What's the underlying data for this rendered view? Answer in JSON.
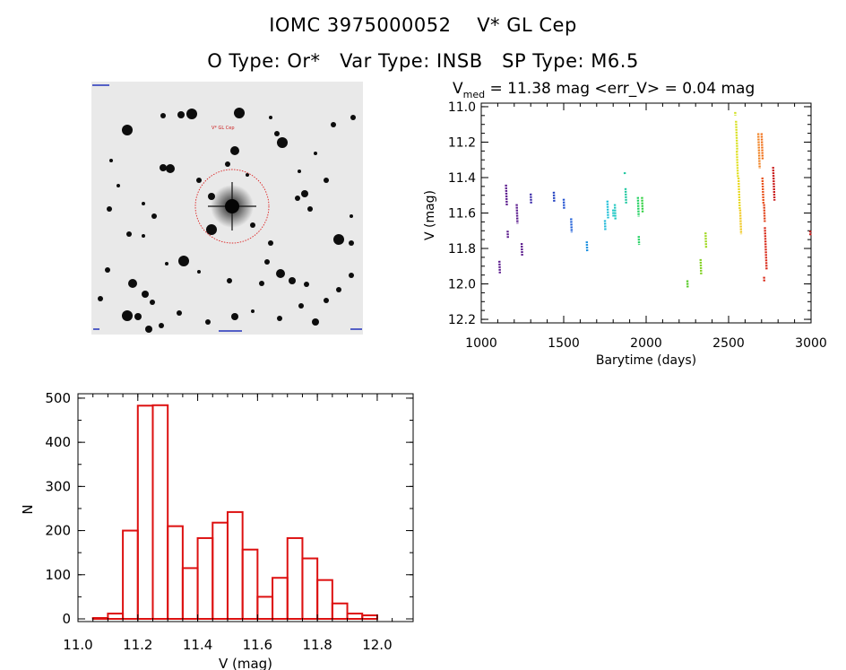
{
  "header": {
    "title_line1": "IOMC 3975000052    V* GL Cep",
    "title_line2": "O Type: Or*   Var Type: INSB   SP Type: M6.5"
  },
  "finder_chart": {
    "target_label": "V* GL Cep",
    "circle_color": "#dd2222"
  },
  "chart_data": [
    {
      "type": "scatter",
      "title": "V_med = 11.38 mag <err_V> = 0.04 mag",
      "title_parts": {
        "v": "V",
        "sub": "med",
        "rest": " = 11.38 mag <err_V> = 0.04 mag"
      },
      "xlabel": "Barytime (days)",
      "ylabel": "V (mag)",
      "xlim": [
        1000,
        3000
      ],
      "ylim": [
        12.22,
        10.98
      ],
      "x_ticks": [
        1000,
        1500,
        2000,
        2500,
        3000
      ],
      "y_ticks": [
        11.0,
        11.2,
        11.4,
        11.6,
        11.8,
        12.0,
        12.2
      ],
      "y_tick_labels": [
        "11.0",
        "11.2",
        "11.4",
        "11.6",
        "11.8",
        "12.0",
        "12.2"
      ],
      "segments": [
        {
          "x": 1110,
          "y1": 11.87,
          "y2": 11.94,
          "color": "#5a1a8c"
        },
        {
          "x": 1150,
          "y1": 11.44,
          "y2": 11.56,
          "color": "#5a1a8c"
        },
        {
          "x": 1160,
          "y1": 11.7,
          "y2": 11.74,
          "color": "#5a1a8c"
        },
        {
          "x": 1215,
          "y1": 11.55,
          "y2": 11.66,
          "color": "#5a1a8c"
        },
        {
          "x": 1245,
          "y1": 11.77,
          "y2": 11.84,
          "color": "#5a1a8c"
        },
        {
          "x": 1300,
          "y1": 11.49,
          "y2": 11.55,
          "color": "#3a2aa8"
        },
        {
          "x": 1440,
          "y1": 11.48,
          "y2": 11.54,
          "color": "#2040c0"
        },
        {
          "x": 1500,
          "y1": 11.52,
          "y2": 11.58,
          "color": "#2050d0"
        },
        {
          "x": 1545,
          "y1": 11.63,
          "y2": 11.71,
          "color": "#2060d8"
        },
        {
          "x": 1640,
          "y1": 11.76,
          "y2": 11.82,
          "color": "#1c90e0"
        },
        {
          "x": 1750,
          "y1": 11.64,
          "y2": 11.7,
          "color": "#20b8d8"
        },
        {
          "x": 1765,
          "y1": 11.53,
          "y2": 11.63,
          "color": "#20c0d8"
        },
        {
          "x": 1800,
          "y1": 11.58,
          "y2": 11.62,
          "color": "#20c8c8"
        },
        {
          "x": 1810,
          "y1": 11.55,
          "y2": 11.64,
          "color": "#20c8c0"
        },
        {
          "x": 1870,
          "y1": 11.37,
          "y2": 11.38,
          "color": "#20c8a0"
        },
        {
          "x": 1875,
          "y1": 11.46,
          "y2": 11.55,
          "color": "#20c8a0"
        },
        {
          "x": 1950,
          "y1": 11.51,
          "y2": 11.62,
          "color": "#20d060"
        },
        {
          "x": 1955,
          "y1": 11.73,
          "y2": 11.78,
          "color": "#20d060"
        },
        {
          "x": 1975,
          "y1": 11.51,
          "y2": 11.6,
          "color": "#30d040"
        },
        {
          "x": 2250,
          "y1": 11.98,
          "y2": 12.02,
          "color": "#50c820"
        },
        {
          "x": 2330,
          "y1": 11.86,
          "y2": 11.95,
          "color": "#80d020"
        },
        {
          "x": 2360,
          "y1": 11.71,
          "y2": 11.8,
          "color": "#a0d820"
        },
        {
          "x": 2540,
          "y1": 11.03,
          "y2": 11.05,
          "color": "#d0e020"
        },
        {
          "x": 2545,
          "y1": 11.08,
          "y2": 11.25,
          "color": "#d8e020"
        },
        {
          "x": 2550,
          "y1": 11.25,
          "y2": 11.4,
          "color": "#e0e020"
        },
        {
          "x": 2560,
          "y1": 11.4,
          "y2": 11.58,
          "color": "#e8d820"
        },
        {
          "x": 2570,
          "y1": 11.58,
          "y2": 11.72,
          "color": "#f0c820"
        },
        {
          "x": 2680,
          "y1": 11.15,
          "y2": 11.35,
          "color": "#f08020"
        },
        {
          "x": 2700,
          "y1": 11.15,
          "y2": 11.3,
          "color": "#f07018"
        },
        {
          "x": 2705,
          "y1": 11.4,
          "y2": 11.55,
          "color": "#e85018"
        },
        {
          "x": 2715,
          "y1": 11.55,
          "y2": 11.65,
          "color": "#e04018"
        },
        {
          "x": 2720,
          "y1": 11.68,
          "y2": 11.92,
          "color": "#d82818"
        },
        {
          "x": 2715,
          "y1": 11.96,
          "y2": 11.99,
          "color": "#d82818"
        },
        {
          "x": 2770,
          "y1": 11.34,
          "y2": 11.53,
          "color": "#c81818"
        },
        {
          "x": 2995,
          "y1": 11.7,
          "y2": 11.73,
          "color": "#c81818"
        }
      ]
    },
    {
      "type": "bar",
      "subtype": "histogram",
      "xlabel": "V (mag)",
      "ylabel": "N",
      "xlim": [
        11.0,
        12.12
      ],
      "ylim": [
        0,
        510
      ],
      "x_ticks": [
        11.0,
        11.2,
        11.4,
        11.6,
        11.8,
        12.0
      ],
      "x_tick_labels": [
        "11.0",
        "11.2",
        "11.4",
        "11.6",
        "11.8",
        "12.0"
      ],
      "y_ticks": [
        0,
        100,
        200,
        300,
        400,
        500
      ],
      "bin_width": 0.05,
      "bin_starts": [
        11.05,
        11.1,
        11.15,
        11.2,
        11.25,
        11.3,
        11.35,
        11.4,
        11.45,
        11.5,
        11.55,
        11.6,
        11.65,
        11.7,
        11.75,
        11.8,
        11.85,
        11.9,
        11.95,
        12.0
      ],
      "values": [
        2,
        12,
        200,
        483,
        484,
        210,
        115,
        183,
        218,
        242,
        157,
        50,
        93,
        183,
        137,
        88,
        35,
        12,
        8,
        0
      ],
      "color": "#dd1111"
    }
  ]
}
